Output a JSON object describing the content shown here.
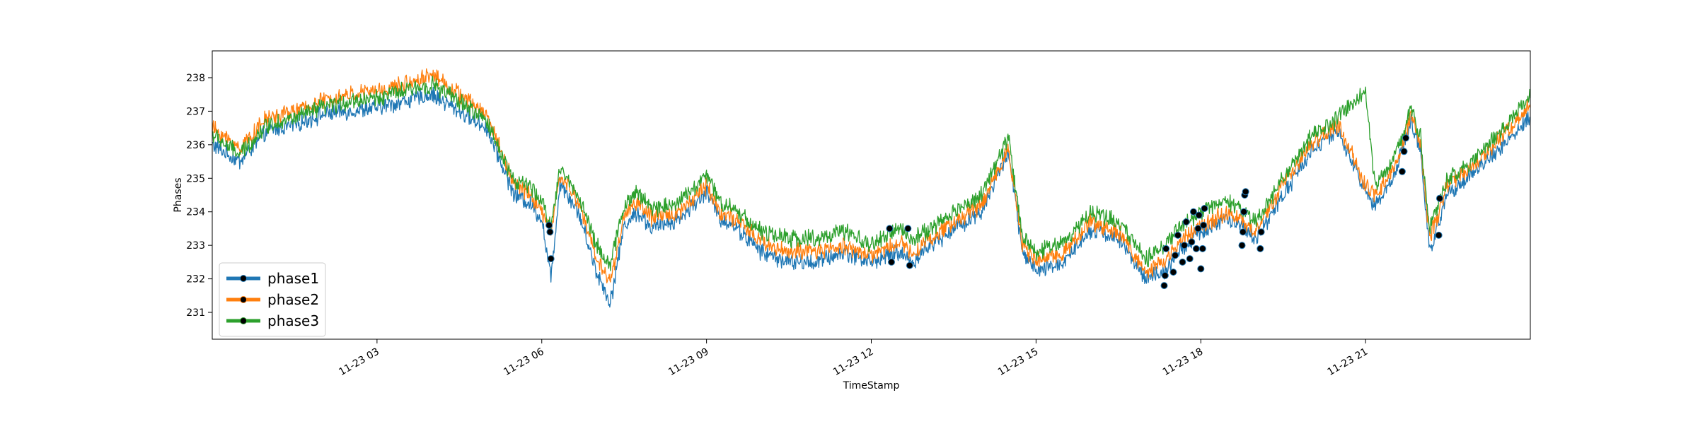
{
  "chart_data": {
    "type": "line",
    "title": "",
    "xlabel": "TimeStamp",
    "ylabel": "Phases",
    "x_range": [
      "11-23 00:00",
      "11-24 00:00"
    ],
    "x_ticks": [
      "11-23 03",
      "11-23 06",
      "11-23 09",
      "11-23 12",
      "11-23 15",
      "11-23 18",
      "11-23 21"
    ],
    "ylim": [
      230.2,
      238.8
    ],
    "y_ticks": [
      231,
      232,
      233,
      234,
      235,
      236,
      237,
      238
    ],
    "grid": false,
    "legend": "lower-left",
    "series": [
      {
        "name": "phase1",
        "color": "#1f77b4",
        "x": [
          "00:00",
          "00:30",
          "01:00",
          "01:30",
          "02:00",
          "02:30",
          "03:00",
          "03:30",
          "04:00",
          "04:30",
          "05:00",
          "05:30",
          "05:45",
          "06:00",
          "06:10",
          "06:20",
          "06:40",
          "07:00",
          "07:15",
          "07:30",
          "07:45",
          "08:00",
          "08:30",
          "09:00",
          "09:15",
          "09:30",
          "10:00",
          "10:30",
          "11:00",
          "11:30",
          "12:00",
          "12:30",
          "12:45",
          "13:00",
          "13:30",
          "14:00",
          "14:30",
          "14:45",
          "15:00",
          "15:30",
          "16:00",
          "16:30",
          "17:00",
          "17:20",
          "17:40",
          "18:00",
          "18:30",
          "19:00",
          "19:30",
          "20:00",
          "20:30",
          "21:00",
          "21:10",
          "21:30",
          "21:50",
          "22:00",
          "22:10",
          "22:30",
          "23:00",
          "23:30",
          "24:00"
        ],
        "y": [
          236.0,
          235.5,
          236.4,
          236.6,
          236.9,
          237.0,
          237.1,
          237.3,
          237.5,
          237.0,
          236.5,
          234.5,
          234.3,
          233.8,
          232.0,
          234.9,
          234.0,
          232.2,
          231.3,
          233.6,
          234.0,
          233.5,
          233.8,
          234.6,
          233.8,
          233.6,
          232.8,
          232.5,
          232.5,
          232.8,
          232.5,
          232.8,
          232.5,
          232.9,
          233.5,
          234.0,
          235.8,
          232.8,
          232.2,
          232.5,
          233.5,
          233.2,
          232.0,
          232.2,
          232.9,
          233.4,
          233.8,
          233.2,
          234.5,
          235.8,
          236.4,
          234.6,
          234.2,
          235.0,
          236.7,
          235.8,
          232.8,
          234.6,
          235.2,
          236.0,
          236.8
        ]
      },
      {
        "name": "phase2",
        "color": "#ff7f0e",
        "x": [
          "00:00",
          "00:30",
          "01:00",
          "01:30",
          "02:00",
          "02:30",
          "03:00",
          "03:30",
          "04:00",
          "04:30",
          "05:00",
          "05:30",
          "05:45",
          "06:00",
          "06:10",
          "06:20",
          "06:40",
          "07:00",
          "07:15",
          "07:30",
          "07:45",
          "08:00",
          "08:30",
          "09:00",
          "09:15",
          "09:30",
          "10:00",
          "10:30",
          "11:00",
          "11:30",
          "12:00",
          "12:30",
          "12:45",
          "13:00",
          "13:30",
          "14:00",
          "14:30",
          "14:45",
          "15:00",
          "15:30",
          "16:00",
          "16:30",
          "17:00",
          "17:20",
          "17:40",
          "18:00",
          "18:30",
          "19:00",
          "19:30",
          "20:00",
          "20:30",
          "21:00",
          "21:10",
          "21:30",
          "21:50",
          "22:00",
          "22:10",
          "22:30",
          "23:00",
          "23:30",
          "24:00"
        ],
        "y": [
          236.5,
          235.9,
          236.8,
          237.0,
          237.3,
          237.5,
          237.6,
          237.8,
          238.1,
          237.5,
          236.9,
          234.8,
          234.6,
          234.0,
          233.4,
          235.1,
          234.3,
          232.6,
          231.9,
          233.9,
          234.3,
          233.8,
          234.0,
          234.8,
          234.0,
          233.8,
          233.1,
          232.8,
          232.8,
          233.0,
          232.7,
          233.1,
          232.8,
          233.1,
          233.7,
          234.2,
          235.9,
          233.0,
          232.5,
          232.8,
          233.7,
          233.4,
          232.2,
          232.5,
          233.2,
          233.6,
          234.0,
          233.4,
          234.8,
          236.0,
          236.6,
          234.8,
          234.5,
          235.2,
          236.9,
          236.0,
          233.2,
          234.8,
          235.4,
          236.3,
          237.2
        ]
      },
      {
        "name": "phase3",
        "color": "#2ca02c",
        "x": [
          "00:00",
          "00:30",
          "01:00",
          "01:30",
          "02:00",
          "02:30",
          "03:00",
          "03:30",
          "04:00",
          "04:30",
          "05:00",
          "05:30",
          "05:45",
          "06:00",
          "06:10",
          "06:20",
          "06:40",
          "07:00",
          "07:15",
          "07:30",
          "07:45",
          "08:00",
          "08:30",
          "09:00",
          "09:15",
          "09:30",
          "10:00",
          "10:30",
          "11:00",
          "11:30",
          "12:00",
          "12:30",
          "12:45",
          "13:00",
          "13:30",
          "14:00",
          "14:30",
          "14:45",
          "15:00",
          "15:30",
          "16:00",
          "16:30",
          "17:00",
          "17:20",
          "17:40",
          "18:00",
          "18:30",
          "19:00",
          "19:30",
          "20:00",
          "20:30",
          "21:00",
          "21:10",
          "21:30",
          "21:50",
          "22:00",
          "22:10",
          "22:30",
          "23:00",
          "23:30",
          "24:00"
        ],
        "y": [
          236.3,
          235.7,
          236.6,
          236.8,
          237.1,
          237.3,
          237.4,
          237.6,
          237.8,
          237.3,
          236.7,
          234.9,
          234.8,
          234.3,
          233.6,
          235.3,
          234.5,
          233.0,
          232.4,
          234.2,
          234.6,
          234.1,
          234.3,
          235.1,
          234.3,
          234.1,
          233.4,
          233.2,
          233.2,
          233.4,
          233.0,
          233.5,
          233.2,
          233.4,
          234.0,
          234.5,
          236.2,
          233.3,
          232.8,
          233.1,
          234.0,
          233.7,
          232.6,
          233.0,
          233.6,
          234.0,
          234.3,
          233.7,
          235.0,
          236.2,
          236.8,
          237.6,
          234.8,
          235.5,
          237.1,
          236.2,
          233.5,
          235.0,
          235.6,
          236.5,
          237.4
        ]
      }
    ],
    "markers": {
      "edge_color": "#1f77b4",
      "points": [
        {
          "x": "06:08",
          "y": 233.6
        },
        {
          "x": "06:09",
          "y": 233.4
        },
        {
          "x": "06:10",
          "y": 232.6
        },
        {
          "x": "12:20",
          "y": 233.5
        },
        {
          "x": "12:22",
          "y": 232.5
        },
        {
          "x": "12:40",
          "y": 233.5
        },
        {
          "x": "12:42",
          "y": 232.4
        },
        {
          "x": "17:20",
          "y": 231.8
        },
        {
          "x": "17:21",
          "y": 232.1
        },
        {
          "x": "17:22",
          "y": 232.9
        },
        {
          "x": "17:30",
          "y": 232.2
        },
        {
          "x": "17:32",
          "y": 232.7
        },
        {
          "x": "17:35",
          "y": 233.3
        },
        {
          "x": "17:40",
          "y": 232.5
        },
        {
          "x": "17:42",
          "y": 233.0
        },
        {
          "x": "17:44",
          "y": 233.7
        },
        {
          "x": "17:48",
          "y": 232.6
        },
        {
          "x": "17:50",
          "y": 233.1
        },
        {
          "x": "17:52",
          "y": 234.0
        },
        {
          "x": "17:55",
          "y": 232.9
        },
        {
          "x": "17:57",
          "y": 233.5
        },
        {
          "x": "17:58",
          "y": 233.9
        },
        {
          "x": "18:00",
          "y": 232.3
        },
        {
          "x": "18:02",
          "y": 232.9
        },
        {
          "x": "18:03",
          "y": 233.6
        },
        {
          "x": "18:04",
          "y": 234.1
        },
        {
          "x": "18:45",
          "y": 233.0
        },
        {
          "x": "18:46",
          "y": 233.4
        },
        {
          "x": "18:47",
          "y": 234.0
        },
        {
          "x": "18:48",
          "y": 234.5
        },
        {
          "x": "18:49",
          "y": 234.6
        },
        {
          "x": "19:05",
          "y": 232.9
        },
        {
          "x": "19:06",
          "y": 233.4
        },
        {
          "x": "21:40",
          "y": 235.2
        },
        {
          "x": "21:42",
          "y": 235.8
        },
        {
          "x": "21:44",
          "y": 236.2
        },
        {
          "x": "22:20",
          "y": 233.3
        },
        {
          "x": "22:21",
          "y": 234.4
        }
      ]
    }
  }
}
